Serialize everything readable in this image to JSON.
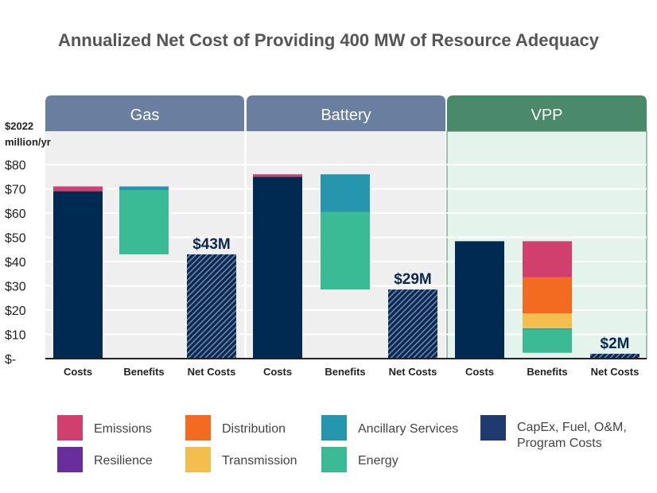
{
  "chart_data": {
    "type": "bar",
    "subtype": "stacked-waterfall",
    "title": "Annualized Net Cost of Providing 400 MW of Resource Adequacy",
    "ylabel": "$2022 million/yr",
    "ylim": [
      0,
      80
    ],
    "yticks": [
      "$-",
      "$10",
      "$20",
      "$30",
      "$40",
      "$50",
      "$60",
      "$70",
      "$80"
    ],
    "grid": true,
    "legend_position": "bottom",
    "colors": {
      "Emissions": "#d03f6e",
      "Distribution": "#f26b21",
      "Ancillary Services": "#2596ad",
      "CapEx, Fuel, O&M, Program Costs": "#002a52",
      "Resilience": "#6a2d9e",
      "Transmission": "#f3be4b",
      "Energy": "#3abb96"
    },
    "panels": [
      {
        "name": "Gas",
        "header_color": "#6a7fa0",
        "bg": "#efefef",
        "categories": [
          "Costs",
          "Benefits",
          "Net Costs"
        ],
        "costs": [
          {
            "series": "CapEx, Fuel, O&M, Program Costs",
            "from": 0,
            "to": 69
          },
          {
            "series": "Emissions",
            "from": 69,
            "to": 71
          }
        ],
        "benefits": [
          {
            "series": "Energy",
            "from": 43,
            "to": 69.5
          },
          {
            "series": "Ancillary Services",
            "from": 69.5,
            "to": 71
          }
        ],
        "net": 43,
        "net_label": "$43M"
      },
      {
        "name": "Battery",
        "header_color": "#6a7fa0",
        "bg": "#efefef",
        "categories": [
          "Costs",
          "Benefits",
          "Net Costs"
        ],
        "costs": [
          {
            "series": "CapEx, Fuel, O&M, Program Costs",
            "from": 0,
            "to": 75
          },
          {
            "series": "Emissions",
            "from": 75,
            "to": 76
          }
        ],
        "benefits": [
          {
            "series": "Energy",
            "from": 28.5,
            "to": 60.5
          },
          {
            "series": "Ancillary Services",
            "from": 60.5,
            "to": 76
          }
        ],
        "net": 28.5,
        "net_label": "$29M"
      },
      {
        "name": "VPP",
        "header_color": "#4a8a6a",
        "bg": "#e5f3ed",
        "categories": [
          "Costs",
          "Benefits",
          "Net Costs"
        ],
        "costs": [
          {
            "series": "CapEx, Fuel, O&M, Program Costs",
            "from": 0,
            "to": 48.4
          }
        ],
        "benefits": [
          {
            "series": "Energy",
            "from": 2.4,
            "to": 12
          },
          {
            "series": "Ancillary Services",
            "from": 12,
            "to": 12.5
          },
          {
            "series": "Transmission",
            "from": 12.5,
            "to": 18.6
          },
          {
            "series": "Distribution",
            "from": 18.6,
            "to": 33.5
          },
          {
            "series": "Emissions",
            "from": 33.5,
            "to": 48.4
          }
        ],
        "net": 2,
        "net_label": "$2M"
      }
    ],
    "legend": [
      "Emissions",
      "Distribution",
      "Ancillary Services",
      "CapEx, Fuel, O&M, Program Costs",
      "Resilience",
      "Transmission",
      "Energy"
    ]
  }
}
